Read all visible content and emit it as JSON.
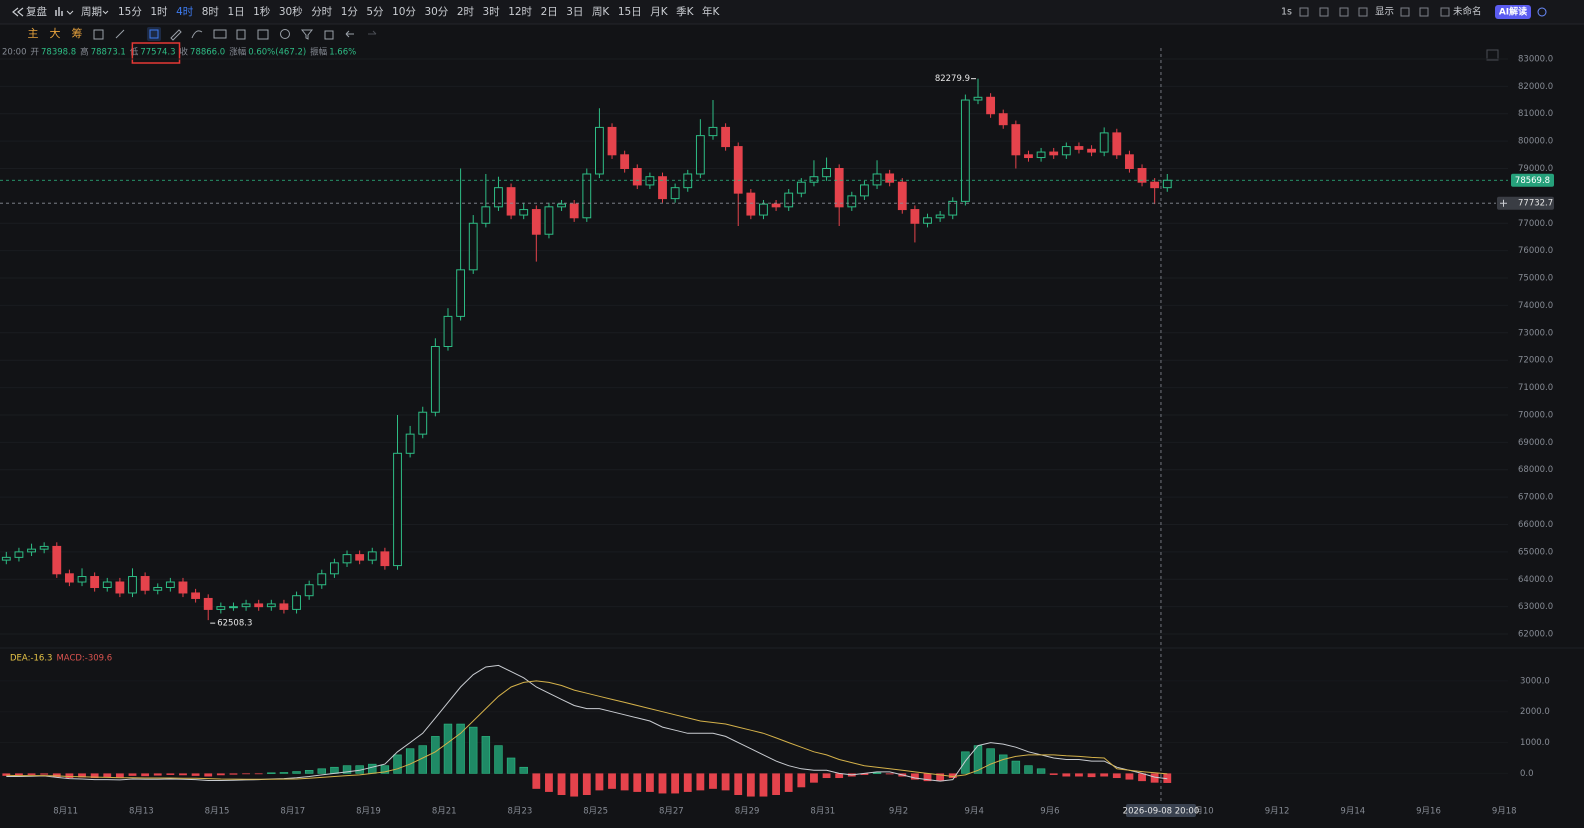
{
  "toolbar": {
    "replay": "复盘",
    "period": "周期",
    "timeframes": [
      "15分",
      "1时",
      "4时",
      "8时",
      "1日",
      "1秒",
      "30秒",
      "分时",
      "1分",
      "5分",
      "10分",
      "30分",
      "2时",
      "3时",
      "12时",
      "2日",
      "3日",
      "周K",
      "15日",
      "月K",
      "季K",
      "年K"
    ],
    "active_timeframe": 2,
    "right": [
      "1s",
      "显示",
      "未命名"
    ],
    "ai": "AI解读"
  },
  "tools": [
    "主",
    "大",
    "筹"
  ],
  "info_bar": {
    "time": "20:00",
    "items": [
      {
        "label": "开",
        "value": "78398.8"
      },
      {
        "label": "高",
        "value": "78873.1"
      },
      {
        "label": "低",
        "value": "77574.3"
      },
      {
        "label": "收",
        "value": "78866.0"
      },
      {
        "label": "涨幅",
        "value": "0.60%(467.2)"
      },
      {
        "label": "振幅",
        "value": "1.66%"
      }
    ],
    "highlighted": 2
  },
  "chart_data": {
    "type": "candlestick",
    "up_color": "#2ebd85",
    "down_color": "#e5434c",
    "candles": [
      [
        64700,
        65000,
        64550,
        64800
      ],
      [
        64800,
        65150,
        64650,
        65000
      ],
      [
        65000,
        65300,
        64850,
        65100
      ],
      [
        65100,
        65350,
        64950,
        65200
      ],
      [
        65200,
        65350,
        64050,
        64200
      ],
      [
        64200,
        64350,
        63750,
        63900
      ],
      [
        63900,
        64400,
        63750,
        64100
      ],
      [
        64100,
        64250,
        63550,
        63700
      ],
      [
        63700,
        64050,
        63550,
        63900
      ],
      [
        63900,
        64050,
        63350,
        63500
      ],
      [
        63500,
        64400,
        63350,
        64100
      ],
      [
        64100,
        64250,
        63450,
        63600
      ],
      [
        63600,
        63850,
        63450,
        63700
      ],
      [
        63700,
        64050,
        63550,
        63900
      ],
      [
        63900,
        64050,
        63350,
        63500
      ],
      [
        63500,
        63650,
        63150,
        63300
      ],
      [
        63300,
        63450,
        62508.3,
        62900
      ],
      [
        62900,
        63150,
        62750,
        63000
      ],
      [
        63000,
        63150,
        62850,
        63000
      ],
      [
        63000,
        63250,
        62850,
        63100
      ],
      [
        63100,
        63250,
        62850,
        63000
      ],
      [
        63000,
        63250,
        62850,
        63100
      ],
      [
        63100,
        63250,
        62750,
        62900
      ],
      [
        62900,
        63550,
        62750,
        63400
      ],
      [
        63400,
        63950,
        63250,
        63800
      ],
      [
        63800,
        64350,
        63650,
        64200
      ],
      [
        64200,
        64750,
        64050,
        64600
      ],
      [
        64600,
        65050,
        64450,
        64900
      ],
      [
        64900,
        65050,
        64550,
        64700
      ],
      [
        64700,
        65150,
        64550,
        65000
      ],
      [
        65000,
        65150,
        64350,
        64500
      ],
      [
        64500,
        70000,
        64350,
        68600
      ],
      [
        68600,
        69600,
        68450,
        69300
      ],
      [
        69300,
        70300,
        69150,
        70100
      ],
      [
        70100,
        72800,
        69950,
        72500
      ],
      [
        72500,
        73900,
        72350,
        73600
      ],
      [
        73600,
        79000,
        73450,
        75300
      ],
      [
        75300,
        77300,
        75150,
        77000
      ],
      [
        77000,
        78800,
        76850,
        77600
      ],
      [
        77600,
        78700,
        77450,
        78300
      ],
      [
        78300,
        78450,
        77150,
        77300
      ],
      [
        77300,
        77750,
        77150,
        77500
      ],
      [
        77500,
        77650,
        75600,
        76600
      ],
      [
        76600,
        77750,
        76450,
        77600
      ],
      [
        77600,
        77850,
        77450,
        77700
      ],
      [
        77700,
        77850,
        77050,
        77200
      ],
      [
        77200,
        79000,
        77050,
        78800
      ],
      [
        78800,
        81200,
        78650,
        80500
      ],
      [
        80500,
        80650,
        79350,
        79500
      ],
      [
        79500,
        79650,
        78850,
        79000
      ],
      [
        79000,
        79150,
        78250,
        78400
      ],
      [
        78400,
        78850,
        78250,
        78700
      ],
      [
        78700,
        78850,
        77750,
        77900
      ],
      [
        77900,
        78450,
        77750,
        78300
      ],
      [
        78300,
        78950,
        78150,
        78800
      ],
      [
        78800,
        80800,
        78650,
        80200
      ],
      [
        80200,
        81500,
        80050,
        80500
      ],
      [
        80500,
        80650,
        79650,
        79800
      ],
      [
        79800,
        79950,
        76900,
        78100
      ],
      [
        78100,
        78250,
        77150,
        77300
      ],
      [
        77300,
        77850,
        77150,
        77700
      ],
      [
        77700,
        77850,
        77450,
        77600
      ],
      [
        77600,
        78250,
        77450,
        78100
      ],
      [
        78100,
        78650,
        77950,
        78500
      ],
      [
        78500,
        79300,
        78350,
        78700
      ],
      [
        78700,
        79400,
        78550,
        79000
      ],
      [
        79000,
        79150,
        76900,
        77600
      ],
      [
        77600,
        78150,
        77450,
        78000
      ],
      [
        78000,
        78550,
        77850,
        78400
      ],
      [
        78400,
        79300,
        78250,
        78800
      ],
      [
        78800,
        78950,
        78350,
        78500
      ],
      [
        78500,
        78650,
        77350,
        77500
      ],
      [
        77500,
        77650,
        76300,
        77000
      ],
      [
        77000,
        77350,
        76850,
        77200
      ],
      [
        77200,
        77450,
        77050,
        77300
      ],
      [
        77300,
        77950,
        77150,
        77800
      ],
      [
        77800,
        81700,
        77650,
        81500
      ],
      [
        81500,
        82279.9,
        81350,
        81600
      ],
      [
        81600,
        81750,
        80850,
        81000
      ],
      [
        81000,
        81150,
        80450,
        80600
      ],
      [
        80600,
        80750,
        79000,
        79500
      ],
      [
        79500,
        79650,
        79250,
        79400
      ],
      [
        79400,
        79750,
        79250,
        79600
      ],
      [
        79600,
        79750,
        79350,
        79500
      ],
      [
        79500,
        79950,
        79350,
        79800
      ],
      [
        79800,
        79950,
        79550,
        79700
      ],
      [
        79700,
        79850,
        79450,
        79600
      ],
      [
        79600,
        80500,
        79450,
        80300
      ],
      [
        80300,
        80450,
        79350,
        79500
      ],
      [
        79500,
        79650,
        78850,
        79000
      ],
      [
        79000,
        79150,
        78350,
        78500
      ],
      [
        78500,
        78650,
        77700,
        78300
      ],
      [
        78300,
        78800,
        78150,
        78569.8
      ]
    ],
    "max_index": 77,
    "min_index": 16,
    "xlim": [
      -0.5,
      119
    ],
    "ylim": [
      61600,
      83400
    ],
    "xticks": [
      {
        "value": 4.7,
        "label": "8月11"
      },
      {
        "value": 10.7,
        "label": "8月13"
      },
      {
        "value": 16.7,
        "label": "8月15"
      },
      {
        "value": 22.7,
        "label": "8月17"
      },
      {
        "value": 28.7,
        "label": "8月19"
      },
      {
        "value": 34.7,
        "label": "8月21"
      },
      {
        "value": 40.7,
        "label": "8月23"
      },
      {
        "value": 46.7,
        "label": "8月25"
      },
      {
        "value": 52.7,
        "label": "8月27"
      },
      {
        "value": 58.7,
        "label": "8月29"
      },
      {
        "value": 64.7,
        "label": "8月31"
      },
      {
        "value": 70.7,
        "label": "9月2"
      },
      {
        "value": 76.7,
        "label": "9月4"
      },
      {
        "value": 82.7,
        "label": "9月6"
      },
      {
        "value": 94.7,
        "label": "9月10"
      },
      {
        "value": 100.7,
        "label": "9月12"
      },
      {
        "value": 106.7,
        "label": "9月14"
      },
      {
        "value": 112.7,
        "label": "9月16"
      },
      {
        "value": 118.7,
        "label": "9月18"
      }
    ],
    "yticks": [
      {
        "value": 83000,
        "label": "83000.0"
      },
      {
        "value": 82000,
        "label": "82000.0"
      },
      {
        "value": 81000,
        "label": "81000.0"
      },
      {
        "value": 80000,
        "label": "80000.0"
      },
      {
        "value": 79000,
        "label": "79000.0"
      },
      {
        "value": 77000,
        "label": "77000.0"
      },
      {
        "value": 76000,
        "label": "76000.0"
      },
      {
        "value": 75000,
        "label": "75000.0"
      },
      {
        "value": 74000,
        "label": "74000.0"
      },
      {
        "value": 73000,
        "label": "73000.0"
      },
      {
        "value": 72000,
        "label": "72000.0"
      },
      {
        "value": 71000,
        "label": "71000.0"
      },
      {
        "value": 70000,
        "label": "70000.0"
      },
      {
        "value": 69000,
        "label": "69000.0"
      },
      {
        "value": 68000,
        "label": "68000.0"
      },
      {
        "value": 67000,
        "label": "67000.0"
      },
      {
        "value": 66000,
        "label": "66000.0"
      },
      {
        "value": 65000,
        "label": "65000.0"
      },
      {
        "value": 64000,
        "label": "64000.0"
      },
      {
        "value": 63000,
        "label": "63000.0"
      },
      {
        "value": 62000,
        "label": "62000.0"
      }
    ],
    "crosshair": {
      "x": 91.5,
      "price": 77732.7,
      "time": "2026-09-08 20:00"
    }
  },
  "macd": {
    "type": "macd",
    "legend": [
      {
        "text": "DEA:-16.3",
        "color": "#e8c547"
      },
      {
        "text": "MACD:-309.6",
        "color": "#d9534f"
      }
    ],
    "dif_color": "#c9ccd1",
    "dea_color": "#d4b14a",
    "dif": [
      -100,
      -100,
      -90,
      -80,
      -130,
      -170,
      -180,
      -200,
      -200,
      -210,
      -180,
      -190,
      -190,
      -180,
      -190,
      -200,
      -230,
      -230,
      -220,
      -210,
      -200,
      -180,
      -170,
      -140,
      -100,
      -50,
      0,
      50,
      100,
      200,
      300,
      700,
      1000,
      1300,
      1800,
      2300,
      2800,
      3200,
      3450,
      3500,
      3300,
      3100,
      2800,
      2600,
      2400,
      2200,
      2100,
      2100,
      2000,
      1900,
      1800,
      1700,
      1500,
      1400,
      1300,
      1300,
      1300,
      1200,
      1000,
      800,
      600,
      400,
      250,
      150,
      100,
      100,
      0,
      -50,
      0,
      50,
      50,
      -50,
      -150,
      -200,
      -250,
      -200,
      400,
      900,
      1000,
      950,
      850,
      700,
      600,
      500,
      450,
      450,
      400,
      400,
      200,
      100,
      0,
      -120,
      -171.1
    ],
    "dea": [
      -60,
      -70,
      -70,
      -70,
      -80,
      -100,
      -110,
      -120,
      -130,
      -140,
      -140,
      -150,
      -150,
      -150,
      -155,
      -160,
      -170,
      -180,
      -185,
      -190,
      -190,
      -190,
      -185,
      -180,
      -160,
      -130,
      -100,
      -70,
      -50,
      0,
      50,
      150,
      300,
      500,
      700,
      1000,
      1300,
      1700,
      2100,
      2500,
      2800,
      2950,
      3000,
      2950,
      2850,
      2700,
      2600,
      2500,
      2400,
      2300,
      2200,
      2100,
      2000,
      1900,
      1800,
      1700,
      1650,
      1600,
      1500,
      1400,
      1300,
      1150,
      1000,
      850,
      700,
      600,
      450,
      350,
      250,
      200,
      150,
      100,
      50,
      0,
      -50,
      -100,
      -50,
      100,
      300,
      450,
      550,
      600,
      600,
      600,
      570,
      550,
      520,
      500,
      150,
      100,
      60,
      20,
      -16.3
    ],
    "hist": [
      -80,
      -60,
      -50,
      -40,
      -120,
      -150,
      -130,
      -150,
      -120,
      -130,
      -80,
      -90,
      -70,
      -50,
      -60,
      -80,
      -100,
      -60,
      -40,
      -20,
      -10,
      20,
      30,
      60,
      100,
      150,
      200,
      250,
      250,
      300,
      250,
      600,
      800,
      900,
      1200,
      1600,
      1600,
      1500,
      1200,
      900,
      500,
      200,
      -500,
      -600,
      -700,
      -750,
      -700,
      -550,
      -500,
      -550,
      -600,
      -600,
      -650,
      -650,
      -600,
      -550,
      -500,
      -550,
      -700,
      -750,
      -750,
      -700,
      -600,
      -450,
      -300,
      -150,
      -150,
      -100,
      -50,
      20,
      -30,
      -100,
      -200,
      -250,
      -250,
      -150,
      700,
      900,
      800,
      600,
      400,
      250,
      150,
      -50,
      -100,
      -100,
      -120,
      -100,
      -150,
      -200,
      -250,
      -300,
      -309.6
    ],
    "ylim": [
      -700,
      4000
    ],
    "yticks": [
      {
        "value": 3000,
        "label": "3000.0"
      },
      {
        "value": 2000,
        "label": "2000.0"
      },
      {
        "value": 1000,
        "label": "1000.0"
      },
      {
        "value": 0,
        "label": "0.0"
      }
    ]
  }
}
